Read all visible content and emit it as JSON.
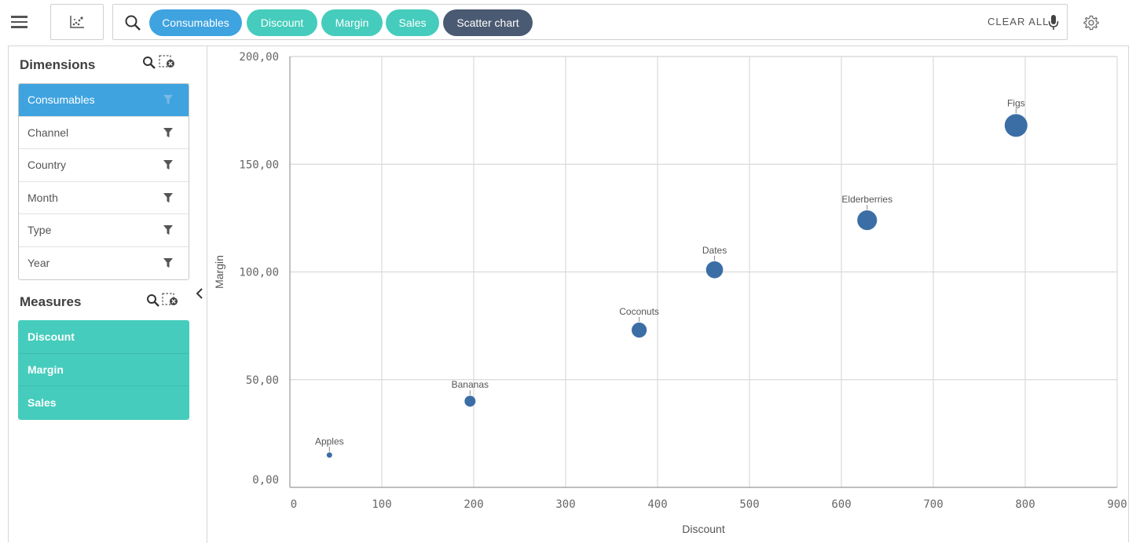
{
  "search": {
    "chips": [
      {
        "label": "Consumables",
        "kind": "dimension"
      },
      {
        "label": "Discount",
        "kind": "measure"
      },
      {
        "label": "Margin",
        "kind": "measure"
      },
      {
        "label": "Sales",
        "kind": "measure"
      },
      {
        "label": "Scatter chart",
        "kind": "visualization"
      }
    ],
    "clear_all_label": "CLEAR ALL"
  },
  "sidebar": {
    "dimensions_title": "Dimensions",
    "dimensions": [
      {
        "label": "Consumables",
        "selected": true
      },
      {
        "label": "Channel",
        "selected": false
      },
      {
        "label": "Country",
        "selected": false
      },
      {
        "label": "Month",
        "selected": false
      },
      {
        "label": "Type",
        "selected": false
      },
      {
        "label": "Year",
        "selected": false
      }
    ],
    "measures_title": "Measures",
    "measures": [
      {
        "label": "Discount"
      },
      {
        "label": "Margin"
      },
      {
        "label": "Sales"
      }
    ]
  },
  "icons": {
    "menu": "hamburger-icon",
    "viz": "scatter-chart-icon",
    "search": "search-icon",
    "mic": "microphone-icon",
    "settings": "gear-icon",
    "filter": "filter-icon",
    "clear_selection": "clear-selection-icon",
    "collapse": "chevron-left-icon"
  },
  "colors": {
    "dimension_chip": "#3fa3e0",
    "measure_chip": "#45ccbc",
    "viz_chip": "#4a5a72",
    "bubble": "#3c6ea6"
  },
  "chart_data": {
    "type": "scatter",
    "xlabel": "Discount",
    "ylabel": "Margin",
    "xlim": [
      0,
      900
    ],
    "ylim": [
      0,
      200
    ],
    "x_ticks": [
      "0",
      "100",
      "200",
      "300",
      "400",
      "500",
      "600",
      "700",
      "800",
      "900"
    ],
    "y_ticks": [
      "0,00",
      "50,00",
      "100,00",
      "150,00",
      "200,00"
    ],
    "grid": true,
    "bubble_size_measure": "Sales",
    "points": [
      {
        "label": "Apples",
        "x": 43,
        "y": 15,
        "size": 1
      },
      {
        "label": "Bananas",
        "x": 196,
        "y": 40,
        "size": 3
      },
      {
        "label": "Coconuts",
        "x": 380,
        "y": 73,
        "size": 4.5
      },
      {
        "label": "Dates",
        "x": 462,
        "y": 101,
        "size": 5.2
      },
      {
        "label": "Elderberries",
        "x": 628,
        "y": 124,
        "size": 6.2
      },
      {
        "label": "Figs",
        "x": 790,
        "y": 168,
        "size": 7.3
      }
    ]
  }
}
